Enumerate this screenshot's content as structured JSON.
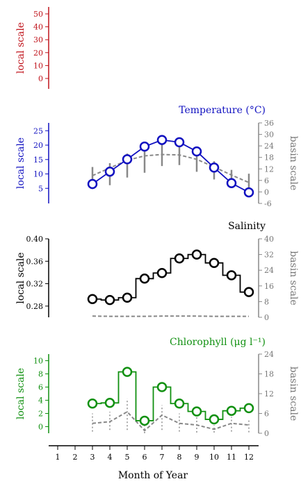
{
  "x_axis": {
    "label": "Month of Year",
    "ticks": [
      "1",
      "2",
      "3",
      "4",
      "5",
      "6",
      "7",
      "8",
      "9",
      "10",
      "11",
      "12"
    ]
  },
  "chart_data": [
    {
      "type": "line",
      "title": "",
      "ylabel": "local scale",
      "ylim": [
        0,
        50
      ],
      "left_ticks": [
        "50",
        "40",
        "30",
        "20",
        "10",
        "0"
      ],
      "color": "#c0141c",
      "series": []
    },
    {
      "type": "line",
      "title": "Temperature (°C)",
      "ylabel": "local scale",
      "ylabel_right": "basin scale",
      "ylim": [
        0,
        27
      ],
      "ylim_right": [
        -6,
        36
      ],
      "left_ticks": [
        "25",
        "20",
        "15",
        "10",
        "5"
      ],
      "right_ticks": [
        "36",
        "30",
        "24",
        "18",
        "12",
        "6",
        "0",
        "-6"
      ],
      "color": "#1010c0",
      "x": [
        3,
        4,
        5,
        6,
        7,
        8,
        9,
        10,
        11,
        12
      ],
      "series": [
        {
          "axis": "left",
          "style": "line-markers",
          "color": "#1010c0",
          "values": [
            6.5,
            10.8,
            15.1,
            19.5,
            21.8,
            21.0,
            17.8,
            12.2,
            6.8,
            3.6
          ]
        },
        {
          "axis": "right",
          "style": "dashed",
          "color": "#888888",
          "values": [
            8.5,
            12.5,
            16.5,
            18.8,
            19.5,
            19.3,
            17.0,
            13.0,
            8.8,
            4.9
          ]
        },
        {
          "axis": "right",
          "style": "range",
          "color": "#888888",
          "low": [
            1.5,
            3.5,
            7.5,
            10.0,
            13.5,
            14.0,
            10.5,
            6.5,
            2.5,
            -1.0
          ],
          "high": [
            13.0,
            15.0,
            20.0,
            23.0,
            25.0,
            24.0,
            21.5,
            16.0,
            11.5,
            9.5
          ]
        }
      ]
    },
    {
      "type": "line",
      "title": "Salinity",
      "ylabel": "local scale",
      "ylabel_right": "basin scale",
      "ylim": [
        0.26,
        0.4
      ],
      "ylim_right": [
        0,
        40
      ],
      "left_ticks": [
        "0.40",
        "0.36",
        "0.32",
        "0.28"
      ],
      "right_ticks": [
        "40",
        "32",
        "24",
        "16",
        "8",
        "0"
      ],
      "color": "#000000",
      "x": [
        3,
        4,
        5,
        6,
        7,
        8,
        9,
        10,
        11,
        12
      ],
      "series": [
        {
          "axis": "left",
          "style": "step-markers",
          "color": "#000000",
          "values": [
            0.2925,
            0.2908,
            0.295,
            0.329,
            0.339,
            0.365,
            0.372,
            0.357,
            0.335,
            0.305
          ]
        },
        {
          "axis": "right",
          "style": "dashed",
          "color": "#888888",
          "values": [
            0.6,
            0.5,
            0.5,
            0.5,
            0.6,
            0.6,
            0.6,
            0.5,
            0.5,
            0.5
          ]
        }
      ]
    },
    {
      "type": "line",
      "title": "Chlorophyll (μg l⁻¹)",
      "ylabel": "local scale",
      "ylabel_right": "basin scale",
      "ylim": [
        -1,
        11
      ],
      "ylim_right": [
        0,
        24
      ],
      "left_ticks": [
        "10",
        "8",
        "6",
        "4",
        "2",
        "0"
      ],
      "right_ticks": [
        "24",
        "18",
        "12",
        "6",
        "0"
      ],
      "color": "#109010",
      "x": [
        3,
        4,
        5,
        6,
        7,
        8,
        9,
        10,
        11,
        12
      ],
      "series": [
        {
          "axis": "left",
          "style": "step-markers",
          "color": "#109010",
          "values": [
            3.5,
            3.6,
            8.3,
            0.9,
            6.0,
            3.5,
            2.3,
            1.1,
            2.4,
            2.8
          ]
        },
        {
          "axis": "right",
          "style": "dashed",
          "color": "#888888",
          "values": [
            3.0,
            3.5,
            6.5,
            0.8,
            5.5,
            3.0,
            2.5,
            1.2,
            3.0,
            2.5
          ]
        },
        {
          "axis": "right",
          "style": "range",
          "color": "#aaaaaa",
          "low": [
            0.5,
            1.0,
            1.0,
            0.0,
            1.0,
            0.5,
            0.2,
            0.2,
            0.5,
            0.3
          ],
          "high": [
            6.0,
            6.5,
            10.5,
            3.0,
            8.5,
            6.0,
            5.0,
            2.5,
            5.0,
            4.5
          ]
        }
      ]
    }
  ]
}
